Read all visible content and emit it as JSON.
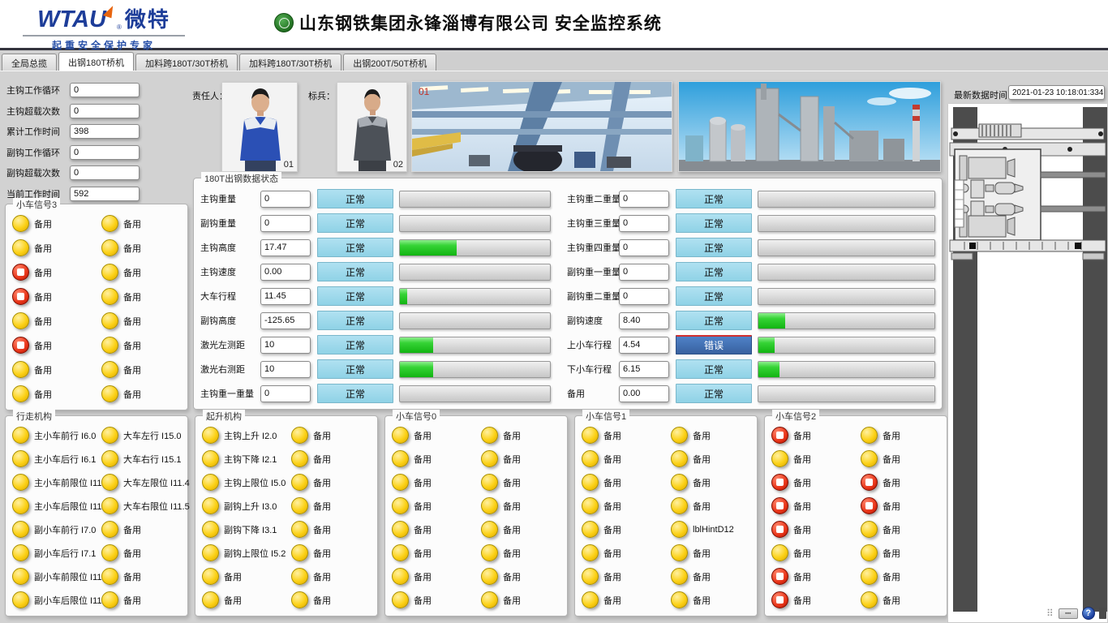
{
  "header": {
    "logo_en": "WTAU",
    "logo_reg": "®",
    "logo_cn": "微特",
    "logo_tagline": "起重安全保护专家",
    "title": "山东钢铁集团永锋淄博有限公司  安全监控系统"
  },
  "tabs": [
    {
      "label": "全局总揽",
      "active": false
    },
    {
      "label": "出钢180T桥机",
      "active": true
    },
    {
      "label": "加料跨180T/30T桥机",
      "active": false
    },
    {
      "label": "加料跨180T/30T桥机",
      "active": false
    },
    {
      "label": "出钢200T/50T桥机",
      "active": false
    }
  ],
  "stats": [
    {
      "label": "主钩工作循环",
      "value": "0"
    },
    {
      "label": "主钩超载次数",
      "value": "0"
    },
    {
      "label": "累计工作时间",
      "value": "398"
    },
    {
      "label": "副钩工作循环",
      "value": "0"
    },
    {
      "label": "副钩超载次数",
      "value": "0"
    },
    {
      "label": "当前工作时间",
      "value": "592"
    }
  ],
  "photos": {
    "responsible_label": "责任人：",
    "responsible_num": "01",
    "pacesetter_label": "标兵：",
    "pacesetter_num": "02",
    "factory1_tag": "01"
  },
  "data_status": {
    "title": "180T出钢数据状态",
    "left_rows": [
      {
        "label": "主钩重量",
        "value": "0",
        "status": "正常",
        "error": false,
        "bar": 0
      },
      {
        "label": "副钩重量",
        "value": "0",
        "status": "正常",
        "error": false,
        "bar": 0
      },
      {
        "label": "主钩高度",
        "value": "17.47",
        "status": "正常",
        "error": false,
        "bar": 38
      },
      {
        "label": "主钩速度",
        "value": "0.00",
        "status": "正常",
        "error": false,
        "bar": 0
      },
      {
        "label": "大车行程",
        "value": "11.45",
        "status": "正常",
        "error": false,
        "bar": 5
      },
      {
        "label": "副钩高度",
        "value": "-125.65",
        "status": "正常",
        "error": false,
        "bar": 0
      },
      {
        "label": "激光左测距",
        "value": "10",
        "status": "正常",
        "error": false,
        "bar": 22
      },
      {
        "label": "激光右测距",
        "value": "10",
        "status": "正常",
        "error": false,
        "bar": 22
      },
      {
        "label": "主钩重一重量",
        "value": "0",
        "status": "正常",
        "error": false,
        "bar": 0
      }
    ],
    "right_rows": [
      {
        "label": "主钩重二重量",
        "value": "0",
        "status": "正常",
        "error": false,
        "bar": 0
      },
      {
        "label": "主钩重三重量",
        "value": "0",
        "status": "正常",
        "error": false,
        "bar": 0
      },
      {
        "label": "主钩重四重量",
        "value": "0",
        "status": "正常",
        "error": false,
        "bar": 0
      },
      {
        "label": "副钩重一重量",
        "value": "0",
        "status": "正常",
        "error": false,
        "bar": 0
      },
      {
        "label": "副钩重二重量",
        "value": "0",
        "status": "正常",
        "error": false,
        "bar": 0
      },
      {
        "label": "副钩速度",
        "value": "8.40",
        "status": "正常",
        "error": false,
        "bar": 15
      },
      {
        "label": "上小车行程",
        "value": "4.54",
        "status": "错误",
        "error": true,
        "bar": 9
      },
      {
        "label": "下小车行程",
        "value": "6.15",
        "status": "正常",
        "error": false,
        "bar": 12
      },
      {
        "label": "备用",
        "value": "0.00",
        "status": "正常",
        "error": false,
        "bar": 0
      }
    ]
  },
  "signal_panels": [
    {
      "title": "小车信号3",
      "left": [
        {
          "label": "备用",
          "state": "yellow"
        },
        {
          "label": "备用",
          "state": "yellow"
        },
        {
          "label": "备用",
          "state": "red"
        },
        {
          "label": "备用",
          "state": "red"
        },
        {
          "label": "备用",
          "state": "yellow"
        },
        {
          "label": "备用",
          "state": "red"
        },
        {
          "label": "备用",
          "state": "yellow"
        },
        {
          "label": "备用",
          "state": "yellow"
        }
      ],
      "right": [
        {
          "label": "备用",
          "state": "yellow"
        },
        {
          "label": "备用",
          "state": "yellow"
        },
        {
          "label": "备用",
          "state": "yellow"
        },
        {
          "label": "备用",
          "state": "yellow"
        },
        {
          "label": "备用",
          "state": "yellow"
        },
        {
          "label": "备用",
          "state": "yellow"
        },
        {
          "label": "备用",
          "state": "yellow"
        },
        {
          "label": "备用",
          "state": "yellow"
        }
      ]
    },
    {
      "title": "行走机构",
      "left": [
        {
          "label": "主小车前行 I6.0",
          "state": "yellow"
        },
        {
          "label": "主小车后行 I6.1",
          "state": "yellow"
        },
        {
          "label": "主小车前限位 I11.0",
          "state": "yellow"
        },
        {
          "label": "主小车后限位 I11.1",
          "state": "yellow"
        },
        {
          "label": "副小车前行 I7.0",
          "state": "yellow"
        },
        {
          "label": "副小车后行 I7.1",
          "state": "yellow"
        },
        {
          "label": "副小车前限位 I11.2",
          "state": "yellow"
        },
        {
          "label": "副小车后限位 I11.3",
          "state": "yellow"
        }
      ],
      "right": [
        {
          "label": "大车左行 I15.0",
          "state": "yellow"
        },
        {
          "label": "大车右行 I15.1",
          "state": "yellow"
        },
        {
          "label": "大车左限位 I11.4",
          "state": "yellow"
        },
        {
          "label": "大车右限位 I11.5",
          "state": "yellow"
        },
        {
          "label": "备用",
          "state": "yellow"
        },
        {
          "label": "备用",
          "state": "yellow"
        },
        {
          "label": "备用",
          "state": "yellow"
        },
        {
          "label": "备用",
          "state": "yellow"
        }
      ]
    },
    {
      "title": "起升机构",
      "left": [
        {
          "label": "主钩上升 I2.0",
          "state": "yellow"
        },
        {
          "label": "主钩下降 I2.1",
          "state": "yellow"
        },
        {
          "label": "主钩上限位 I5.0",
          "state": "yellow"
        },
        {
          "label": "副钩上升 I3.0",
          "state": "yellow"
        },
        {
          "label": "副钩下降 I3.1",
          "state": "yellow"
        },
        {
          "label": "副钩上限位 I5.2",
          "state": "yellow"
        },
        {
          "label": "备用",
          "state": "yellow"
        },
        {
          "label": "备用",
          "state": "yellow"
        }
      ],
      "right": [
        {
          "label": "备用",
          "state": "yellow"
        },
        {
          "label": "备用",
          "state": "yellow"
        },
        {
          "label": "备用",
          "state": "yellow"
        },
        {
          "label": "备用",
          "state": "yellow"
        },
        {
          "label": "备用",
          "state": "yellow"
        },
        {
          "label": "备用",
          "state": "yellow"
        },
        {
          "label": "备用",
          "state": "yellow"
        },
        {
          "label": "备用",
          "state": "yellow"
        }
      ]
    },
    {
      "title": "小车信号0",
      "left": [
        {
          "label": "备用",
          "state": "yellow"
        },
        {
          "label": "备用",
          "state": "yellow"
        },
        {
          "label": "备用",
          "state": "yellow"
        },
        {
          "label": "备用",
          "state": "yellow"
        },
        {
          "label": "备用",
          "state": "yellow"
        },
        {
          "label": "备用",
          "state": "yellow"
        },
        {
          "label": "备用",
          "state": "yellow"
        },
        {
          "label": "备用",
          "state": "yellow"
        }
      ],
      "right": [
        {
          "label": "备用",
          "state": "yellow"
        },
        {
          "label": "备用",
          "state": "yellow"
        },
        {
          "label": "备用",
          "state": "yellow"
        },
        {
          "label": "备用",
          "state": "yellow"
        },
        {
          "label": "备用",
          "state": "yellow"
        },
        {
          "label": "备用",
          "state": "yellow"
        },
        {
          "label": "备用",
          "state": "yellow"
        },
        {
          "label": "备用",
          "state": "yellow"
        }
      ]
    },
    {
      "title": "小车信号1",
      "left": [
        {
          "label": "备用",
          "state": "yellow"
        },
        {
          "label": "备用",
          "state": "yellow"
        },
        {
          "label": "备用",
          "state": "yellow"
        },
        {
          "label": "备用",
          "state": "yellow"
        },
        {
          "label": "备用",
          "state": "yellow"
        },
        {
          "label": "备用",
          "state": "yellow"
        },
        {
          "label": "备用",
          "state": "yellow"
        },
        {
          "label": "备用",
          "state": "yellow"
        }
      ],
      "right": [
        {
          "label": "备用",
          "state": "yellow"
        },
        {
          "label": "备用",
          "state": "yellow"
        },
        {
          "label": "备用",
          "state": "yellow"
        },
        {
          "label": "备用",
          "state": "yellow"
        },
        {
          "label": "lblHintD12",
          "state": "yellow"
        },
        {
          "label": "备用",
          "state": "yellow"
        },
        {
          "label": "备用",
          "state": "yellow"
        },
        {
          "label": "备用",
          "state": "yellow"
        }
      ]
    },
    {
      "title": "小车信号2",
      "left": [
        {
          "label": "备用",
          "state": "red"
        },
        {
          "label": "备用",
          "state": "yellow"
        },
        {
          "label": "备用",
          "state": "red"
        },
        {
          "label": "备用",
          "state": "red"
        },
        {
          "label": "备用",
          "state": "red"
        },
        {
          "label": "备用",
          "state": "yellow"
        },
        {
          "label": "备用",
          "state": "red"
        },
        {
          "label": "备用",
          "state": "red"
        }
      ],
      "right": [
        {
          "label": "备用",
          "state": "yellow"
        },
        {
          "label": "备用",
          "state": "yellow"
        },
        {
          "label": "备用",
          "state": "red"
        },
        {
          "label": "备用",
          "state": "red"
        },
        {
          "label": "备用",
          "state": "yellow"
        },
        {
          "label": "备用",
          "state": "yellow"
        },
        {
          "label": "备用",
          "state": "yellow"
        },
        {
          "label": "备用",
          "state": "yellow"
        }
      ]
    }
  ],
  "right_panel": {
    "time_label": "最新数据时间：",
    "time_value": "2021-01-23 10:18:01:334"
  },
  "taskbar": {
    "help": "?"
  },
  "colors": {
    "status_normal_bg": "#8fd2e6",
    "status_error_bg": "#38619f",
    "status_error_topline": "#d03030",
    "bar_fill_green": "#12b412",
    "light_yellow": "#fcd116",
    "light_red": "#e83418",
    "brand_blue": "#1d3d99"
  }
}
